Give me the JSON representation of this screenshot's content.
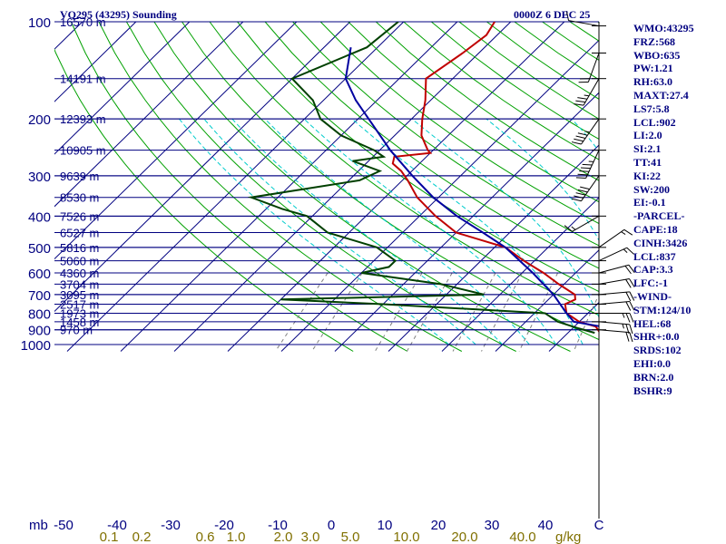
{
  "chart_data": {
    "type": "skew-t",
    "title_left": "VQ295 (43295) Sounding",
    "title_right": "0000Z  6 DEC 25",
    "pressure_unit": "mb",
    "pressure_ticks": [
      100,
      200,
      300,
      400,
      500,
      600,
      700,
      800,
      900,
      1000
    ],
    "pressure_range": [
      100,
      1050
    ],
    "temp_ticks": [
      -50,
      -40,
      -30,
      -20,
      -10,
      0,
      10,
      20,
      30,
      40
    ],
    "temp_ticks_cut": [
      "C"
    ],
    "temp_unit": "C",
    "mixing_ratio_labels": [
      "0.1",
      "0.2",
      "0.6",
      "1.0",
      "2.0",
      "3.0",
      "5.0",
      "10.0",
      "20.0",
      "40.0"
    ],
    "mixing_ratio_unit": "g/kg",
    "height_levels": [
      {
        "p": 100,
        "label": "16570 m"
      },
      {
        "p": 150,
        "label": "14191 m"
      },
      {
        "p": 200,
        "label": "12393 m"
      },
      {
        "p": 250,
        "label": "10905 m"
      },
      {
        "p": 300,
        "label": "9639 m"
      },
      {
        "p": 350,
        "label": "8530 m"
      },
      {
        "p": 400,
        "label": "7526 m"
      },
      {
        "p": 450,
        "label": "6527 m"
      },
      {
        "p": 500,
        "label": "5816 m"
      },
      {
        "p": 550,
        "label": "5060 m"
      },
      {
        "p": 600,
        "label": "4360 m"
      },
      {
        "p": 650,
        "label": "3704 m"
      },
      {
        "p": 700,
        "label": "3095 m"
      },
      {
        "p": 750,
        "label": "2517 m"
      },
      {
        "p": 800,
        "label": "1973 m"
      },
      {
        "p": 850,
        "label": "1458 m"
      },
      {
        "p": 900,
        "label": "970 m"
      }
    ],
    "series": [
      {
        "name": "temperature",
        "color": "#c00000",
        "points": [
          [
            100,
            -63
          ],
          [
            110,
            -62
          ],
          [
            125,
            -63
          ],
          [
            150,
            -65
          ],
          [
            175,
            -61
          ],
          [
            200,
            -58
          ],
          [
            225,
            -55
          ],
          [
            250,
            -51
          ],
          [
            255,
            -50
          ],
          [
            262,
            -56
          ],
          [
            275,
            -55
          ],
          [
            290,
            -52
          ],
          [
            310,
            -49
          ],
          [
            350,
            -44
          ],
          [
            400,
            -37
          ],
          [
            450,
            -30
          ],
          [
            500,
            -18
          ],
          [
            550,
            -12
          ],
          [
            600,
            -6
          ],
          [
            650,
            -1
          ],
          [
            700,
            4
          ],
          [
            725,
            5
          ],
          [
            750,
            4
          ],
          [
            800,
            6
          ],
          [
            850,
            10
          ],
          [
            880,
            14
          ],
          [
            920,
            16
          ]
        ]
      },
      {
        "name": "dewpoint",
        "color": "#004000",
        "points": [
          [
            100,
            -81
          ],
          [
            120,
            -82
          ],
          [
            150,
            -90
          ],
          [
            175,
            -82
          ],
          [
            200,
            -77
          ],
          [
            225,
            -70
          ],
          [
            250,
            -61
          ],
          [
            262,
            -58
          ],
          [
            270,
            -63
          ],
          [
            290,
            -56
          ],
          [
            310,
            -58
          ],
          [
            350,
            -75
          ],
          [
            380,
            -67
          ],
          [
            400,
            -61
          ],
          [
            450,
            -54
          ],
          [
            500,
            -42
          ],
          [
            550,
            -36
          ],
          [
            575,
            -36
          ],
          [
            600,
            -40
          ],
          [
            650,
            -23
          ],
          [
            700,
            -13
          ],
          [
            725,
            -50
          ],
          [
            750,
            -30
          ],
          [
            800,
            2
          ],
          [
            850,
            6
          ],
          [
            890,
            11
          ],
          [
            920,
            15
          ]
        ]
      },
      {
        "name": "parcel",
        "color": "#0000a0",
        "points": [
          [
            120,
            -85
          ],
          [
            150,
            -80
          ],
          [
            175,
            -74
          ],
          [
            200,
            -68
          ],
          [
            250,
            -58
          ],
          [
            300,
            -49
          ],
          [
            350,
            -41
          ],
          [
            400,
            -33
          ],
          [
            450,
            -25
          ],
          [
            500,
            -18
          ],
          [
            600,
            -8
          ],
          [
            700,
            0
          ],
          [
            800,
            6
          ],
          [
            850,
            9
          ],
          [
            880,
            15
          ],
          [
            920,
            19
          ]
        ]
      }
    ],
    "wind_barbs": [
      {
        "p": 103,
        "dir": 280,
        "spd": 10
      },
      {
        "p": 125,
        "dir": 200,
        "spd": 20
      },
      {
        "p": 150,
        "dir": 210,
        "spd": 35
      },
      {
        "p": 200,
        "dir": 215,
        "spd": 45
      },
      {
        "p": 250,
        "dir": 205,
        "spd": 55
      },
      {
        "p": 300,
        "dir": 215,
        "spd": 50
      },
      {
        "p": 400,
        "dir": 240,
        "spd": 15
      },
      {
        "p": 500,
        "dir": 55,
        "spd": 15
      },
      {
        "p": 550,
        "dir": 65,
        "spd": 15
      },
      {
        "p": 600,
        "dir": 75,
        "spd": 20
      },
      {
        "p": 650,
        "dir": 80,
        "spd": 20
      },
      {
        "p": 700,
        "dir": 85,
        "spd": 20
      },
      {
        "p": 750,
        "dir": 85,
        "spd": 20
      },
      {
        "p": 800,
        "dir": 90,
        "spd": 25
      },
      {
        "p": 850,
        "dir": 95,
        "spd": 25
      },
      {
        "p": 900,
        "dir": 95,
        "spd": 20
      }
    ],
    "colors": {
      "isobar": "#000080",
      "isotherm": "#000080",
      "dry_adiabat": "#00a000",
      "moist_adiabat": "#00cccc",
      "mixing_ratio": "#808080",
      "axis_text": "#000080",
      "mixing_text": "#807000",
      "wind": "#000000"
    }
  },
  "stats": [
    "WMO:43295",
    "FRZ:568",
    "WBO:635",
    "PW:1.21",
    "RH:63.0",
    "MAXT:27.4",
    "LS7:5.8",
    "LCL:902",
    "LI:2.0",
    "SI:2.1",
    "TT:41",
    "KI:22",
    "SW:200",
    "EI:-0.1",
    "-PARCEL-",
    "CAPE:18",
    "CINH:3426",
    "LCL:837",
    "CAP:3.3",
    "LFC:-1",
    "-WIND-",
    "STM:124/10",
    "HEL:68",
    "SHR+:0.0",
    "SRDS:102",
    "EHI:0.0",
    "BRN:2.0",
    "BSHR:9"
  ]
}
